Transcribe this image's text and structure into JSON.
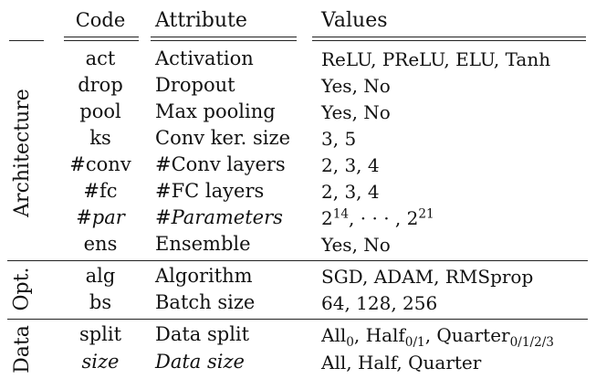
{
  "headers": {
    "code": "Code",
    "attribute": "Attribute",
    "values": "Values"
  },
  "groups": {
    "architecture": "Architecture",
    "opt": "Opt.",
    "data": "Data"
  },
  "rows": [
    {
      "code": "act",
      "attribute": "Activation",
      "values": "ReLU, PReLU, ELU, Tanh"
    },
    {
      "code": "drop",
      "attribute": "Dropout",
      "values": "Yes, No"
    },
    {
      "code": "pool",
      "attribute": "Max pooling",
      "values": "Yes, No"
    },
    {
      "code": "ks",
      "attribute": "Conv ker. size",
      "values": "3, 5"
    },
    {
      "code": "#conv",
      "attribute": "#Conv layers",
      "values": "2, 3, 4"
    },
    {
      "code": "#fc",
      "attribute": "#FC layers",
      "values": "2, 3, 4"
    },
    {
      "code": "#par",
      "attribute": "#Parameters",
      "values": {
        "base": "2",
        "exp_start": "14",
        "ellipsis": ",  · · · ,  ",
        "exp_end": "21"
      }
    },
    {
      "code": "ens",
      "attribute": "Ensemble",
      "values": "Yes, No"
    },
    {
      "code": "alg",
      "attribute": "Algorithm",
      "values": "SGD, ADAM, RMSprop"
    },
    {
      "code": "bs",
      "attribute": "Batch size",
      "values": "64, 128, 256"
    },
    {
      "code": "split",
      "attribute": "Data split",
      "values": {
        "all": "All",
        "all_sub": "0",
        "half": "Half",
        "half_sub": "0/1",
        "quarter": "Quarter",
        "quarter_sub": "0/1/2/3"
      }
    },
    {
      "code": "size",
      "attribute": "Data size",
      "values": "All, Half, Quarter"
    }
  ]
}
